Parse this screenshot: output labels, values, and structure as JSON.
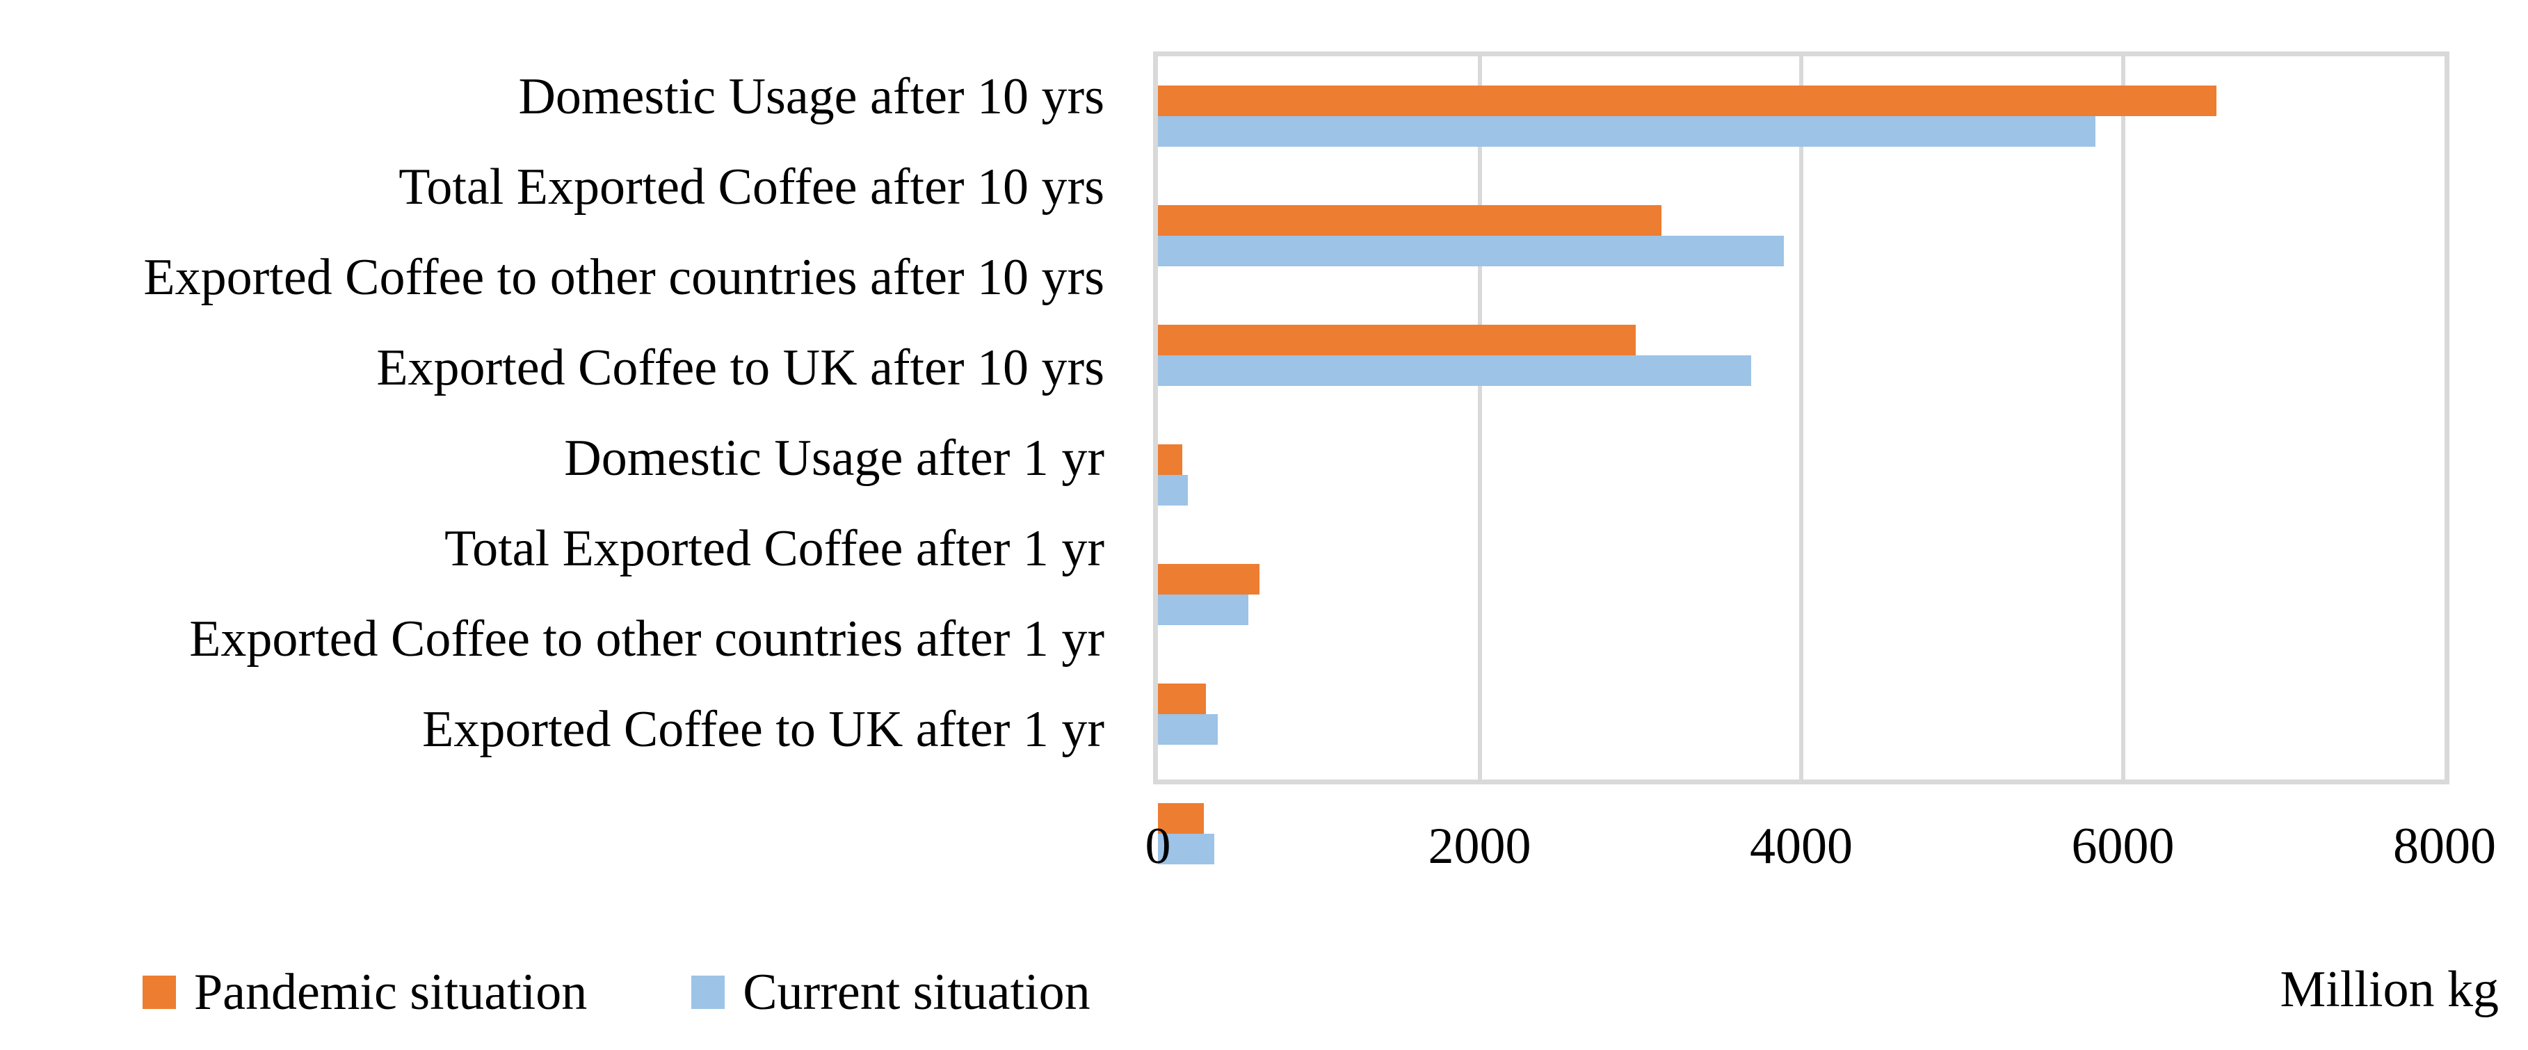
{
  "chart_data": {
    "type": "bar",
    "orientation": "horizontal",
    "title": "",
    "xlabel": "Million kg",
    "xlim": [
      0,
      8000
    ],
    "x_ticks": [
      "0",
      "2000",
      "4000",
      "6000",
      "8000"
    ],
    "grid": true,
    "legend_position": "bottom-left",
    "categories": [
      "Domestic Usage after 10 yrs",
      "Total Exported Coffee after 10 yrs",
      "Exported Coffee to other countries after 10 yrs",
      "Exported Coffee to UK after 10 yrs",
      "Domestic Usage after 1 yr",
      "Total Exported Coffee after 1 yr",
      "Exported Coffee to other countries after 1 yr",
      "Exported Coffee to UK after 1 yr"
    ],
    "series": [
      {
        "name": "Pandemic situation",
        "color": "#ED7D31",
        "values": [
          6580,
          3130,
          2970,
          150,
          630,
          300,
          285,
          0
        ]
      },
      {
        "name": "Current situation",
        "color": "#9DC3E6",
        "values": [
          5830,
          3890,
          3690,
          185,
          560,
          370,
          350,
          0
        ]
      }
    ]
  },
  "colors": {
    "gridline": "#D9D9D9",
    "background": "#FFFFFF",
    "text": "#000000"
  }
}
